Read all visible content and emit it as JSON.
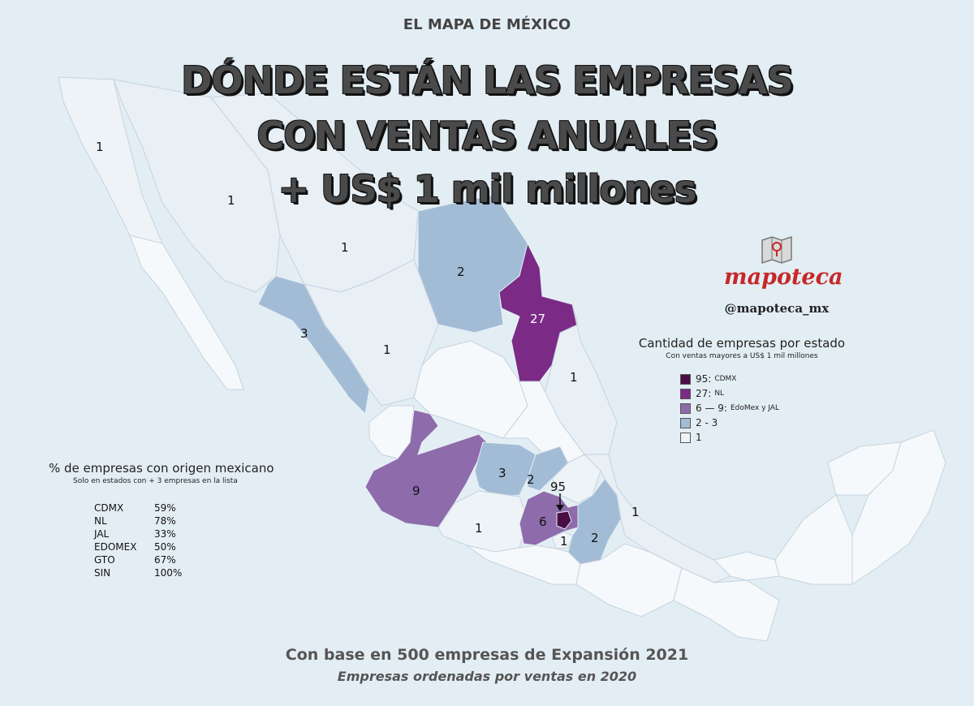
{
  "header": {
    "kicker": "EL MAPA DE MÉXICO",
    "title_line1": "DÓNDE ESTÁN LAS EMPRESAS",
    "title_line2": "CON VENTAS ANUALES",
    "title_line3": "+ US$ 1 mil millones"
  },
  "brand": {
    "name": "mapoteca",
    "handle": "@mapoteca_mx",
    "icon": "folded-map-pin-icon"
  },
  "legend": {
    "title": "Cantidad de empresas por estado",
    "subtitle": "Con ventas mayores a US$ 1 mil millones",
    "items": [
      {
        "label": "95:",
        "note": "CDMX",
        "color": "#4a0d45"
      },
      {
        "label": "27:",
        "note": "NL",
        "color": "#7b2a86"
      },
      {
        "label": "6 — 9:",
        "note": "EdoMex y JAL",
        "color": "#8e6bab"
      },
      {
        "label": "2 - 3",
        "note": "",
        "color": "#a3bcd6"
      },
      {
        "label": "1",
        "note": "",
        "color": "#eef3f8"
      }
    ]
  },
  "origin_table": {
    "title": "% de empresas con origen mexicano",
    "subtitle": "Solo en estados con + 3 empresas en la lista",
    "rows": [
      {
        "state": "CDMX",
        "pct": "59%"
      },
      {
        "state": "NL",
        "pct": "78%"
      },
      {
        "state": "JAL",
        "pct": "33%"
      },
      {
        "state": "EDOMEX",
        "pct": "50%"
      },
      {
        "state": "GTO",
        "pct": "67%"
      },
      {
        "state": "SIN",
        "pct": "100%"
      }
    ]
  },
  "map_labels": {
    "baja_california": "1",
    "sonora": "1",
    "chihuahua": "1",
    "coahuila": "2",
    "nuevo_leon": "27",
    "sinaloa": "3",
    "durango": "1",
    "tamaulipas": "1",
    "jalisco": "9",
    "guanajuato": "3",
    "queretaro": "2",
    "cdmx": "95",
    "edomex": "6",
    "michoacan": "1",
    "morelos": "1",
    "puebla": "2",
    "veracruz": "1"
  },
  "footer": {
    "line1": "Con base en 500 empresas de Expansión 2021",
    "line2": "Empresas ordenadas por ventas en 2020"
  }
}
